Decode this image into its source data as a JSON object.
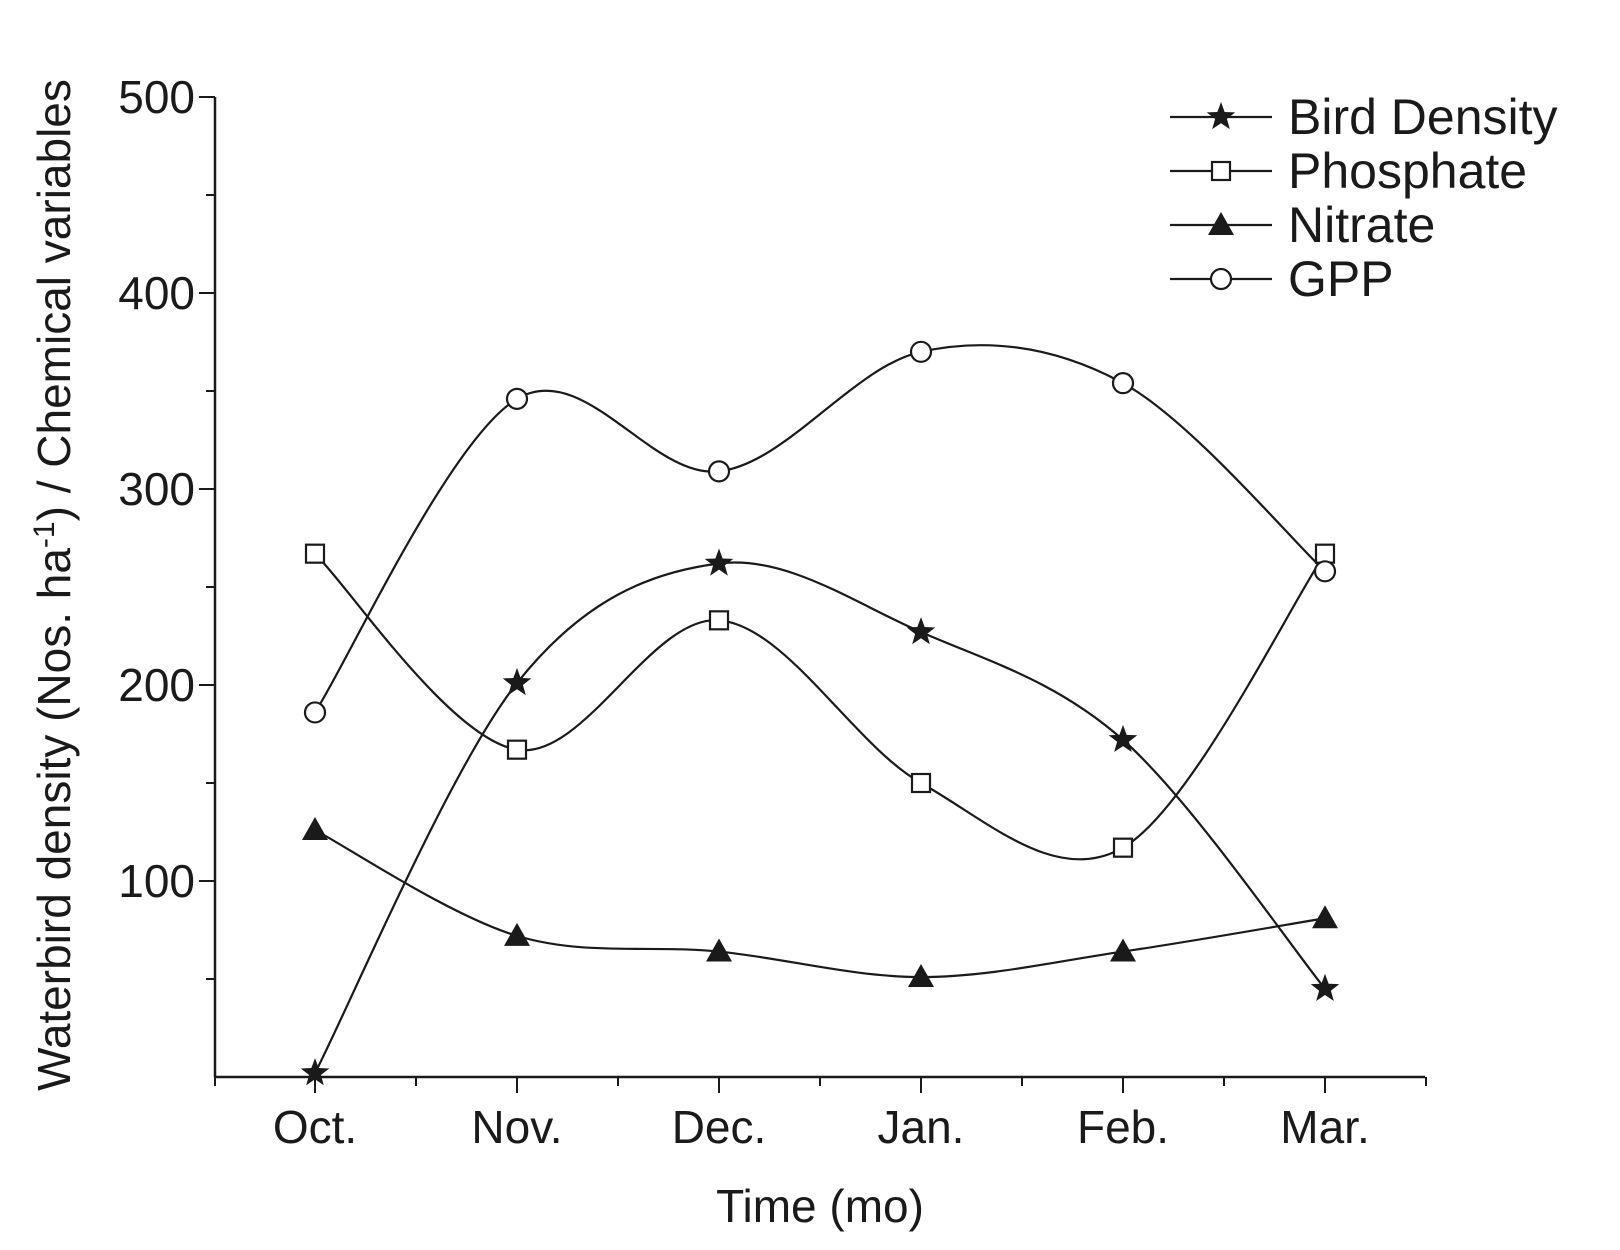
{
  "chart_data": {
    "type": "line",
    "title": "",
    "xlabel": "Time (mo)",
    "ylabel": {
      "prefix": "Waterbird density (Nos. ha",
      "superscript": "-1",
      "suffix": ") / Chemical variables"
    },
    "categories": [
      "Oct.",
      "Nov.",
      "Dec.",
      "Jan.",
      "Feb.",
      "Mar."
    ],
    "ylim": [
      0,
      500
    ],
    "yticks": [
      100,
      200,
      300,
      400,
      500
    ],
    "grid": false,
    "legend_position": "top-right",
    "line_color": "#1a1a1a",
    "series": [
      {
        "name": "Bird Density",
        "marker": "star",
        "values": [
          2,
          201,
          262,
          227,
          172,
          45
        ]
      },
      {
        "name": "Phosphate",
        "marker": "open-square",
        "values": [
          267,
          167,
          233,
          150,
          117,
          267
        ]
      },
      {
        "name": "Nitrate",
        "marker": "filled-triangle",
        "values": [
          126,
          72,
          64,
          51,
          64,
          81
        ]
      },
      {
        "name": "GPP",
        "marker": "open-circle",
        "values": [
          186,
          346,
          309,
          370,
          354,
          258
        ]
      }
    ]
  }
}
